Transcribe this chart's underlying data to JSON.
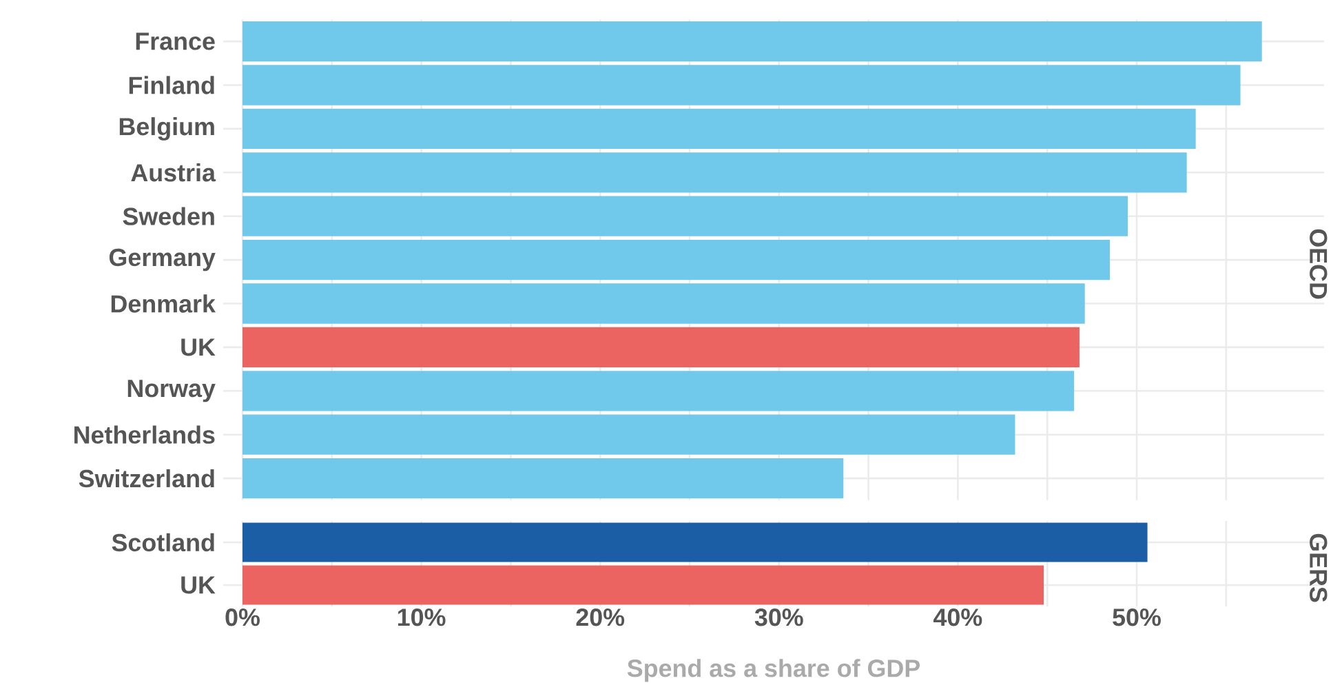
{
  "chart_data": [
    {
      "type": "bar",
      "orientation": "horizontal",
      "title": "OECD",
      "categories": [
        "France",
        "Finland",
        "Belgium",
        "Austria",
        "Sweden",
        "Germany",
        "Denmark",
        "UK",
        "Norway",
        "Netherlands",
        "Switzerland"
      ],
      "values": [
        57.0,
        55.8,
        53.3,
        52.8,
        49.5,
        48.5,
        47.1,
        46.8,
        46.5,
        43.2,
        33.6
      ],
      "colors": [
        "#70c9ea",
        "#70c9ea",
        "#70c9ea",
        "#70c9ea",
        "#70c9ea",
        "#70c9ea",
        "#70c9ea",
        "#eb6461",
        "#70c9ea",
        "#70c9ea",
        "#70c9ea"
      ],
      "xlim": [
        0,
        59.4
      ],
      "xticks": [
        {
          "value": 0,
          "label": null
        },
        {
          "value": 5,
          "label": null
        },
        {
          "value": 10,
          "label": null
        },
        {
          "value": 15,
          "label": null
        },
        {
          "value": 20,
          "label": null
        },
        {
          "value": 25,
          "label": null
        },
        {
          "value": 30,
          "label": null
        },
        {
          "value": 35,
          "label": null
        },
        {
          "value": 40,
          "label": null
        },
        {
          "value": 45,
          "label": null
        },
        {
          "value": 50,
          "label": null
        },
        {
          "value": 55,
          "label": null
        }
      ],
      "grid": true,
      "tick_labels": "y"
    },
    {
      "type": "bar",
      "orientation": "horizontal",
      "title": "GERS",
      "xlabel": "Spend as a share of GDP",
      "categories": [
        "Scotland",
        "UK"
      ],
      "values": [
        50.6,
        44.8
      ],
      "colors": [
        "#1c5ea6",
        "#eb6461"
      ],
      "xlim": [
        0,
        59.4
      ],
      "xticks": [
        {
          "value": 0,
          "label": "0%"
        },
        {
          "value": 5,
          "label": null
        },
        {
          "value": 10,
          "label": "10%"
        },
        {
          "value": 15,
          "label": null
        },
        {
          "value": 20,
          "label": "20%"
        },
        {
          "value": 25,
          "label": null
        },
        {
          "value": 30,
          "label": "30%"
        },
        {
          "value": 35,
          "label": null
        },
        {
          "value": 40,
          "label": "40%"
        },
        {
          "value": 45,
          "label": null
        },
        {
          "value": 50,
          "label": "50%"
        },
        {
          "value": 55,
          "label": null
        }
      ],
      "grid": true
    }
  ]
}
